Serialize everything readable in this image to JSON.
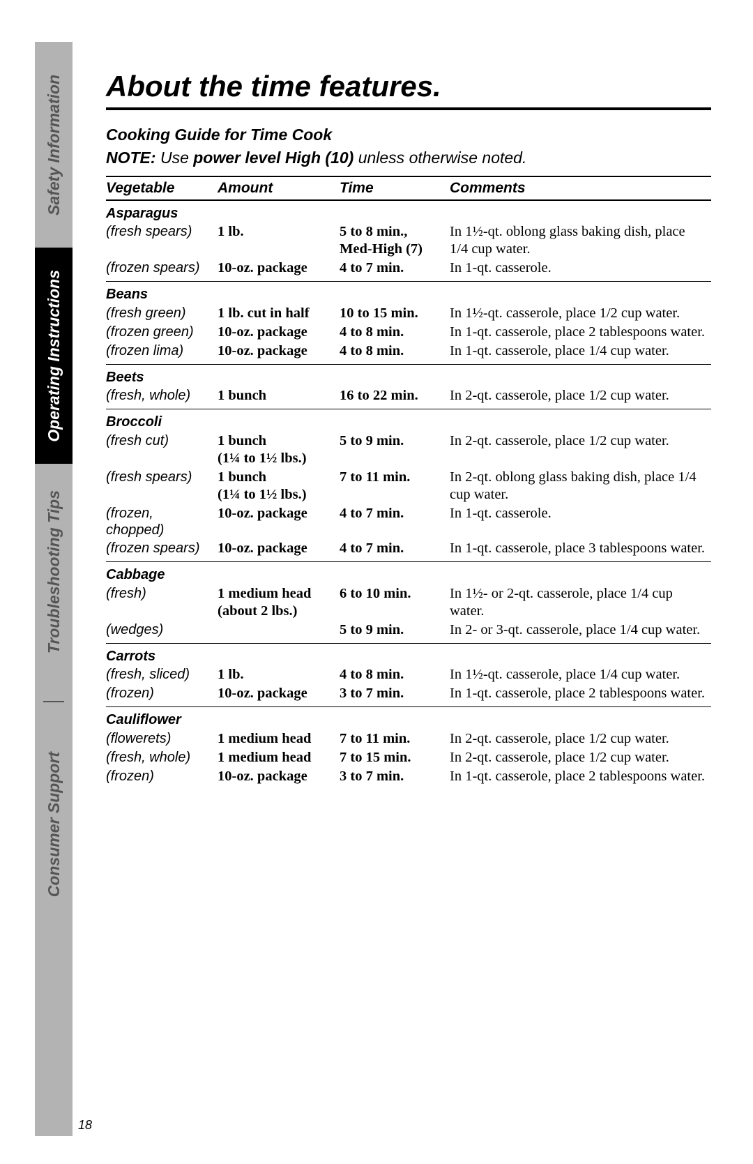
{
  "sidebar": {
    "tabs": [
      {
        "label": "Safety Information"
      },
      {
        "label": "Operating Instructions"
      },
      {
        "label": "Troubleshooting Tips"
      },
      {
        "label": "Consumer Support"
      }
    ]
  },
  "page_number": "18",
  "title": "About the time features.",
  "subtitle": "Cooking Guide for Time Cook",
  "note_prefix": "NOTE:",
  "note_mid1": " Use ",
  "note_bold": "power level High (10)",
  "note_mid2": " unless otherwise noted.",
  "headers": {
    "vegetable": "Vegetable",
    "amount": "Amount",
    "time": "Time",
    "comments": "Comments"
  },
  "groups": [
    {
      "name": "Asparagus",
      "rows": [
        {
          "sub": "(fresh spears)",
          "amount": "1 lb.",
          "time": "5 to 8 min.,\nMed-High (7)",
          "comments": "In 1½-qt. oblong glass baking dish, place 1/4 cup water."
        },
        {
          "sub": "(frozen spears)",
          "amount": "10-oz. package",
          "time": "4 to 7 min.",
          "comments": "In 1-qt. casserole."
        }
      ]
    },
    {
      "name": "Beans",
      "rows": [
        {
          "sub": "(fresh green)",
          "amount": "1 lb. cut in half",
          "time": "10 to 15 min.",
          "comments": "In 1½-qt. casserole, place 1/2 cup water."
        },
        {
          "sub": "(frozen green)",
          "amount": "10-oz. package",
          "time": "4 to 8 min.",
          "comments": "In 1-qt. casserole, place 2 tablespoons water."
        },
        {
          "sub": "(frozen lima)",
          "amount": "10-oz. package",
          "time": "4 to 8 min.",
          "comments": "In 1-qt. casserole, place 1/4 cup water."
        }
      ]
    },
    {
      "name": "Beets",
      "rows": [
        {
          "sub": "(fresh, whole)",
          "amount": "1 bunch",
          "time": "16 to 22 min.",
          "comments": "In 2-qt. casserole, place 1/2 cup water."
        }
      ]
    },
    {
      "name": "Broccoli",
      "rows": [
        {
          "sub": "(fresh cut)",
          "amount": "1 bunch\n(1¼ to 1½ lbs.)",
          "time": "5 to 9 min.",
          "comments": "In 2-qt. casserole, place 1/2 cup water."
        },
        {
          "sub": "(fresh spears)",
          "amount": "1 bunch\n(1¼ to 1½ lbs.)",
          "time": "7 to 11 min.",
          "comments": "In 2-qt. oblong glass baking dish, place 1/4 cup water."
        },
        {
          "sub": "(frozen, chopped)",
          "amount": "10-oz. package",
          "time": "4 to 7 min.",
          "comments": "In 1-qt. casserole."
        },
        {
          "sub": "(frozen spears)",
          "amount": "10-oz. package",
          "time": "4 to 7 min.",
          "comments": "In 1-qt. casserole, place 3 tablespoons water."
        }
      ]
    },
    {
      "name": "Cabbage",
      "rows": [
        {
          "sub": "(fresh)",
          "amount": "1 medium head (about 2 lbs.)",
          "time": "6 to 10 min.",
          "comments": "In 1½- or 2-qt. casserole, place 1/4 cup water."
        },
        {
          "sub": "(wedges)",
          "amount": "",
          "time": "5 to 9 min.",
          "comments": "In 2- or 3-qt. casserole, place 1/4 cup water."
        }
      ]
    },
    {
      "name": "Carrots",
      "rows": [
        {
          "sub": "(fresh, sliced)",
          "amount": "1 lb.",
          "time": "4 to 8 min.",
          "comments": "In 1½-qt. casserole, place 1/4 cup water."
        },
        {
          "sub": "(frozen)",
          "amount": "10-oz. package",
          "time": "3 to 7 min.",
          "comments": "In 1-qt. casserole, place 2 tablespoons water."
        }
      ]
    },
    {
      "name": "Cauliflower",
      "rows": [
        {
          "sub": "(flowerets)",
          "amount": "1 medium head",
          "time": "7 to 11 min.",
          "comments": "In 2-qt. casserole, place 1/2 cup water."
        },
        {
          "sub": "(fresh, whole)",
          "amount": "1 medium head",
          "time": "7 to 15 min.",
          "comments": "In 2-qt. casserole, place 1/2 cup water."
        },
        {
          "sub": "(frozen)",
          "amount": "10-oz. package",
          "time": "3 to 7 min.",
          "comments": "In 1-qt. casserole, place 2 tablespoons water."
        }
      ]
    }
  ]
}
